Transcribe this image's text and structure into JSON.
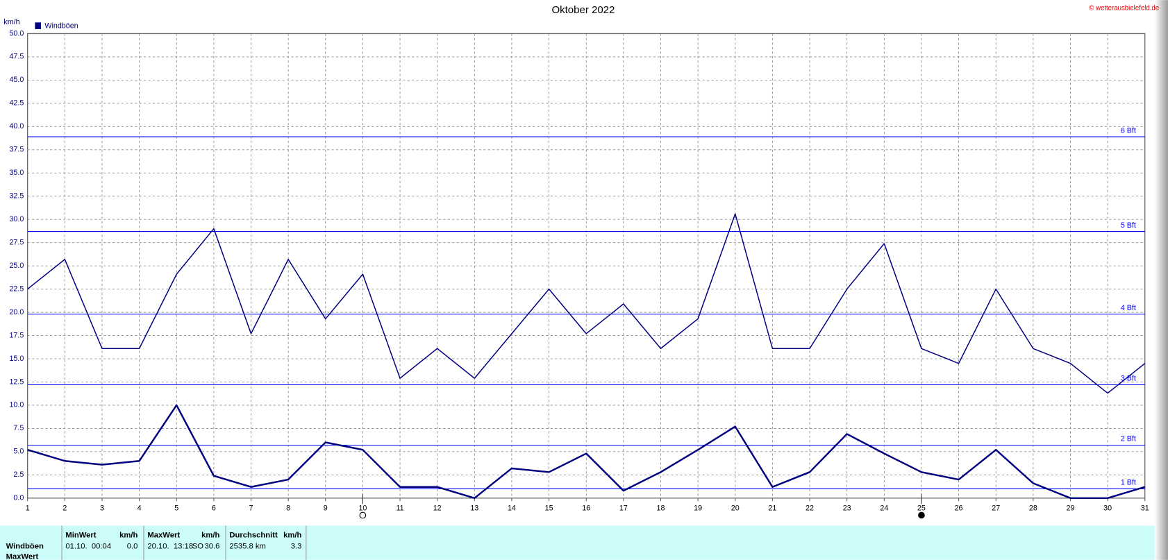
{
  "chart_data": {
    "type": "line",
    "title": "Oktober 2022",
    "y_label": "km/h",
    "credit": "© wetterausbielefeld.de",
    "x": [
      1,
      2,
      3,
      4,
      5,
      6,
      7,
      8,
      9,
      10,
      11,
      12,
      13,
      14,
      15,
      16,
      17,
      18,
      19,
      20,
      21,
      22,
      23,
      24,
      25,
      26,
      27,
      28,
      29,
      30,
      31
    ],
    "series": [
      {
        "name": "Windböen",
        "color": "#000080",
        "values": [
          22.5,
          25.7,
          16.1,
          16.1,
          24.1,
          29.0,
          17.7,
          25.7,
          19.3,
          24.1,
          12.9,
          16.1,
          12.9,
          17.7,
          22.5,
          17.7,
          20.9,
          16.1,
          19.3,
          30.6,
          16.1,
          16.1,
          22.5,
          27.4,
          16.1,
          14.5,
          22.5,
          16.1,
          14.5,
          11.3,
          14.5
        ]
      },
      {
        "color": "#000080",
        "values": [
          5.2,
          4.0,
          3.6,
          4.0,
          10.0,
          2.4,
          1.2,
          2.0,
          6.0,
          5.2,
          1.2,
          1.2,
          0.0,
          3.2,
          2.8,
          4.8,
          0.8,
          2.8,
          5.2,
          7.7,
          1.2,
          2.8,
          6.9,
          4.8,
          2.8,
          2.0,
          5.2,
          1.6,
          0.0,
          0.0,
          1.2
        ]
      }
    ],
    "xlim": [
      1,
      31
    ],
    "xticks": [
      1,
      2,
      3,
      4,
      5,
      6,
      7,
      8,
      9,
      10,
      11,
      12,
      13,
      14,
      15,
      16,
      17,
      18,
      19,
      20,
      21,
      22,
      23,
      24,
      25,
      26,
      27,
      28,
      29,
      30,
      31
    ],
    "ylim": [
      0,
      50
    ],
    "yticks": [
      {
        "value": 0,
        "label": "0.0"
      },
      2.5,
      {
        "value": 5,
        "label": "5.0"
      },
      7.5,
      {
        "value": 10,
        "label": "10.0"
      },
      12.5,
      {
        "value": 15,
        "label": "15.0"
      },
      17.5,
      {
        "value": 20,
        "label": "20.0"
      },
      22.5,
      {
        "value": 25,
        "label": "25.0"
      },
      27.5,
      {
        "value": 30,
        "label": "30.0"
      },
      32.5,
      {
        "value": 35,
        "label": "35.0"
      },
      37.5,
      {
        "value": 40,
        "label": "40.0"
      },
      42.5,
      {
        "value": 45,
        "label": "45.0"
      },
      47.5,
      {
        "value": 50,
        "label": "50.0"
      }
    ],
    "grid": true,
    "reference_lines": [
      {
        "value": 1.0,
        "label": "1 Bft"
      },
      {
        "value": 5.7,
        "label": "2 Bft"
      },
      {
        "value": 12.2,
        "label": "3 Bft"
      },
      {
        "value": 19.8,
        "label": "4 Bft"
      },
      {
        "value": 28.7,
        "label": "5 Bft"
      },
      {
        "value": 38.9,
        "label": "6 Bft"
      }
    ],
    "reference_color": "#0000ff",
    "moon_phases": [
      {
        "x": 10,
        "phase": "full"
      },
      {
        "x": 25,
        "phase": "new"
      }
    ]
  },
  "table": {
    "header": [
      "MinWert",
      "km/h",
      "MaxWert",
      "km/h",
      "Durchschnitt",
      "km/h"
    ],
    "rows": [
      [
        "Windböen",
        "01.10.  00:04",
        "0.0",
        "20.10.  13:18",
        "SO",
        "30.6",
        "2535.8 km",
        "3.3"
      ],
      [
        "MaxWert"
      ]
    ]
  }
}
